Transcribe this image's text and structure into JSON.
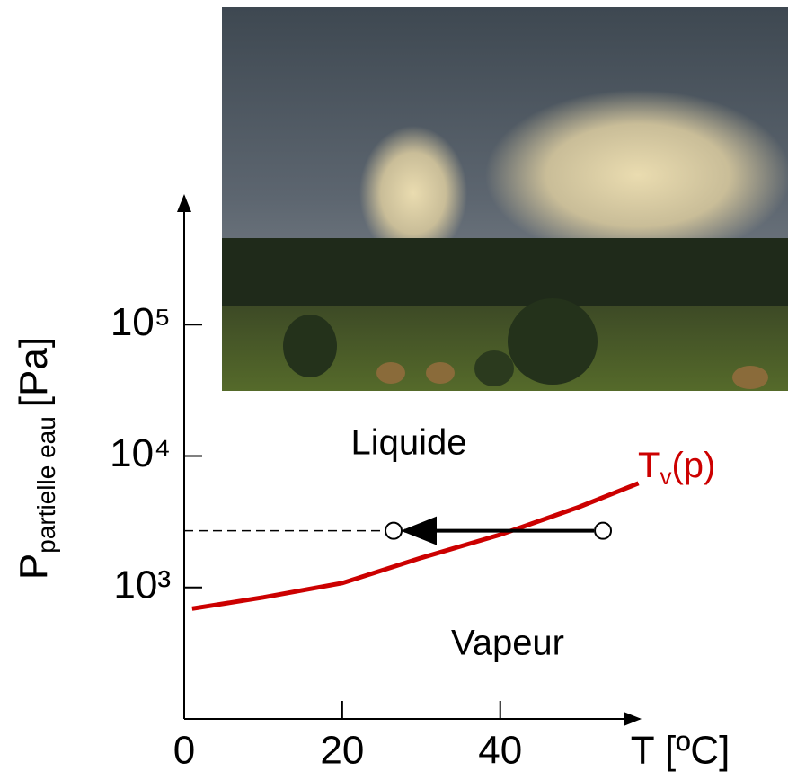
{
  "chart_data": {
    "type": "line",
    "log_y": true,
    "y_label": "P",
    "y_label_sub": "partielle eau",
    "y_label_unit": "[Pa]",
    "x_label": "T [ºC]",
    "curve_label": "T",
    "curve_label_sub": "v",
    "curve_label_end": "(p)",
    "region_labels": [
      "Liquide",
      "Vapeur"
    ],
    "x": [
      1,
      10,
      20,
      30,
      40,
      50,
      57.5
    ],
    "series": [
      {
        "color": "#cc0000",
        "values": [
          690,
          840,
          1080,
          1680,
          2520,
          4100,
          6200
        ]
      }
    ],
    "process": {
      "x": [
        53,
        26.5
      ],
      "y": [
        2700,
        2700
      ]
    },
    "xlim": [
      0,
      58
    ],
    "xticks": [
      0,
      20,
      40
    ],
    "ylim": [
      100,
      1000000
    ],
    "yticks": [
      {
        "value": 1000,
        "label": "10³"
      },
      {
        "value": 10000,
        "label": "10⁴"
      },
      {
        "value": 100000,
        "label": "10⁵"
      }
    ]
  }
}
